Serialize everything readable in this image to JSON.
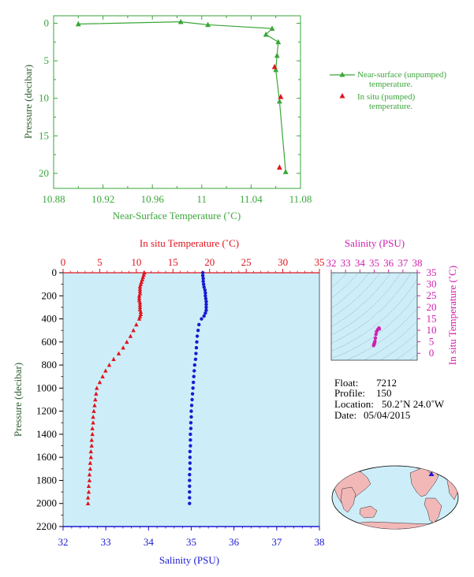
{
  "colors": {
    "green": "#3aa63a",
    "red": "#e0141e",
    "blue": "#1a1ad0",
    "magenta": "#d020b0",
    "dark_green_text": "#2e5e2e",
    "plot_bg": "#cdeef8",
    "axis_blue": "#1a1ad0"
  },
  "chart_data": [
    {
      "type": "line",
      "xlabel": "Near-Surface Temperature (˚C)",
      "ylabel": "Pressure (decibar)",
      "xlim": [
        10.88,
        11.08
      ],
      "ylim": [
        22,
        -1
      ],
      "xticks": [
        "10.88",
        "10.92",
        "10.96",
        "11",
        "11.04",
        "11.08"
      ],
      "xtick_values": [
        10.88,
        10.92,
        10.96,
        11.0,
        11.04,
        11.08
      ],
      "yticks": [
        "0",
        "5",
        "10",
        "15",
        "20"
      ],
      "ytick_values": [
        0,
        5,
        10,
        15,
        20
      ],
      "legend_placement": "right",
      "series": [
        {
          "name": "Near-surface (unpumped) temperature.",
          "marker": "triangle-line",
          "x": [
            10.9,
            10.983,
            11.005,
            11.057,
            11.052,
            11.062,
            11.061,
            11.06,
            11.063,
            11.068
          ],
          "y": [
            0.1,
            -0.2,
            0.2,
            0.7,
            1.5,
            2.5,
            4.3,
            6.2,
            10.4,
            19.8
          ]
        },
        {
          "name": "In situ (pumped) temperature.",
          "marker": "triangle",
          "x": [
            11.059,
            11.064,
            11.063
          ],
          "y": [
            5.8,
            9.8,
            19.2
          ]
        }
      ]
    },
    {
      "type": "scatter",
      "xlabel_top": "In situ Temperature (˚C)",
      "xlabel_bottom": "Salinity (PSU)",
      "ylabel": "Pressure (decibar)",
      "top_xlim": [
        0,
        35
      ],
      "top_xticks": [
        "0",
        "5",
        "10",
        "15",
        "20",
        "25",
        "30",
        "35"
      ],
      "top_xtick_values": [
        0,
        5,
        10,
        15,
        20,
        25,
        30,
        35
      ],
      "bottom_xlim": [
        32,
        38
      ],
      "bottom_xticks": [
        "32",
        "33",
        "34",
        "35",
        "36",
        "37",
        "38"
      ],
      "bottom_xtick_values": [
        32,
        33,
        34,
        35,
        36,
        37,
        38
      ],
      "ylim": [
        2200,
        0
      ],
      "yticks": [
        "0",
        "200",
        "400",
        "600",
        "800",
        "1000",
        "1200",
        "1400",
        "1600",
        "1800",
        "2000",
        "2200"
      ],
      "ytick_values": [
        0,
        200,
        400,
        600,
        800,
        1000,
        1200,
        1400,
        1600,
        1800,
        2000,
        2200
      ],
      "temperature": {
        "p": [
          0,
          20,
          40,
          60,
          80,
          100,
          120,
          140,
          160,
          180,
          200,
          220,
          240,
          260,
          280,
          300,
          320,
          340,
          360,
          380,
          400,
          450,
          500,
          550,
          600,
          650,
          700,
          750,
          800,
          850,
          900,
          950,
          1000,
          1050,
          1100,
          1150,
          1200,
          1250,
          1300,
          1350,
          1400,
          1450,
          1500,
          1550,
          1600,
          1650,
          1700,
          1750,
          1800,
          1850,
          1900,
          1950,
          2000
        ],
        "t": [
          11.1,
          11.0,
          10.9,
          10.8,
          10.7,
          10.6,
          10.5,
          10.5,
          10.5,
          10.5,
          10.4,
          10.4,
          10.4,
          10.5,
          10.5,
          10.5,
          10.5,
          10.6,
          10.6,
          10.5,
          10.4,
          10.0,
          9.6,
          9.2,
          8.7,
          8.2,
          7.6,
          6.9,
          6.3,
          5.8,
          5.4,
          5.0,
          4.6,
          4.5,
          4.4,
          4.3,
          4.2,
          4.1,
          4.1,
          4.0,
          4.0,
          3.9,
          3.9,
          3.8,
          3.8,
          3.7,
          3.7,
          3.6,
          3.6,
          3.5,
          3.5,
          3.4,
          3.4
        ]
      },
      "salinity": {
        "p": [
          0,
          25,
          50,
          75,
          100,
          125,
          150,
          175,
          200,
          225,
          250,
          275,
          300,
          325,
          350,
          375,
          400,
          450,
          500,
          550,
          600,
          650,
          700,
          750,
          800,
          850,
          900,
          950,
          1000,
          1050,
          1100,
          1150,
          1200,
          1250,
          1300,
          1350,
          1400,
          1450,
          1500,
          1550,
          1600,
          1650,
          1700,
          1750,
          1800,
          1850,
          1900,
          1950,
          2000
        ],
        "s": [
          35.27,
          35.27,
          35.28,
          35.28,
          35.29,
          35.3,
          35.32,
          35.33,
          35.33,
          35.34,
          35.35,
          35.35,
          35.35,
          35.35,
          35.33,
          35.3,
          35.24,
          35.18,
          35.16,
          35.14,
          35.13,
          35.12,
          35.11,
          35.1,
          35.08,
          35.07,
          35.06,
          35.05,
          35.04,
          35.03,
          35.02,
          35.01,
          35.0,
          35.0,
          34.99,
          34.99,
          34.98,
          34.98,
          34.98,
          34.97,
          34.97,
          34.97,
          34.97,
          34.96,
          34.96,
          34.96,
          34.96,
          34.96,
          34.96
        ]
      }
    },
    {
      "type": "scatter",
      "title_top": "Salinity (PSU)",
      "ylabel": "In situ Temperature (˚C)",
      "xlim": [
        32,
        38
      ],
      "xticks": [
        "32",
        "33",
        "34",
        "35",
        "36",
        "37",
        "38"
      ],
      "xtick_values": [
        32,
        33,
        34,
        35,
        36,
        37,
        38
      ],
      "ylim": [
        -3,
        35
      ],
      "yticks": [
        "0",
        "5",
        "10",
        "15",
        "20",
        "25",
        "30",
        "35"
      ],
      "ytick_values": [
        0,
        5,
        10,
        15,
        20,
        25,
        30,
        35
      ],
      "points": {
        "s": [
          35.33,
          35.35,
          35.3,
          35.24,
          35.16,
          35.12,
          35.08,
          35.05,
          35.02,
          35.0,
          34.98,
          34.97,
          34.96
        ],
        "t": [
          11.0,
          10.6,
          10.5,
          10.3,
          9.4,
          8.2,
          6.6,
          5.2,
          4.5,
          4.2,
          3.9,
          3.7,
          3.4
        ]
      }
    }
  ],
  "info": {
    "float_label": "Float:",
    "float_value": "7212",
    "profile_label": "Profile:",
    "profile_value": "150",
    "location_label": "Location:",
    "location_value": "50.2˚N  24.0˚W",
    "date_label": "Date:",
    "date_value": "05/04/2015"
  },
  "legend": {
    "entry1_line1": "Near-surface (unpumped)",
    "entry1_line2": "temperature.",
    "entry2_line1": "In situ (pumped)",
    "entry2_line2": "temperature."
  },
  "map": {
    "location_lat": 50.2,
    "location_lon": -24.0
  }
}
